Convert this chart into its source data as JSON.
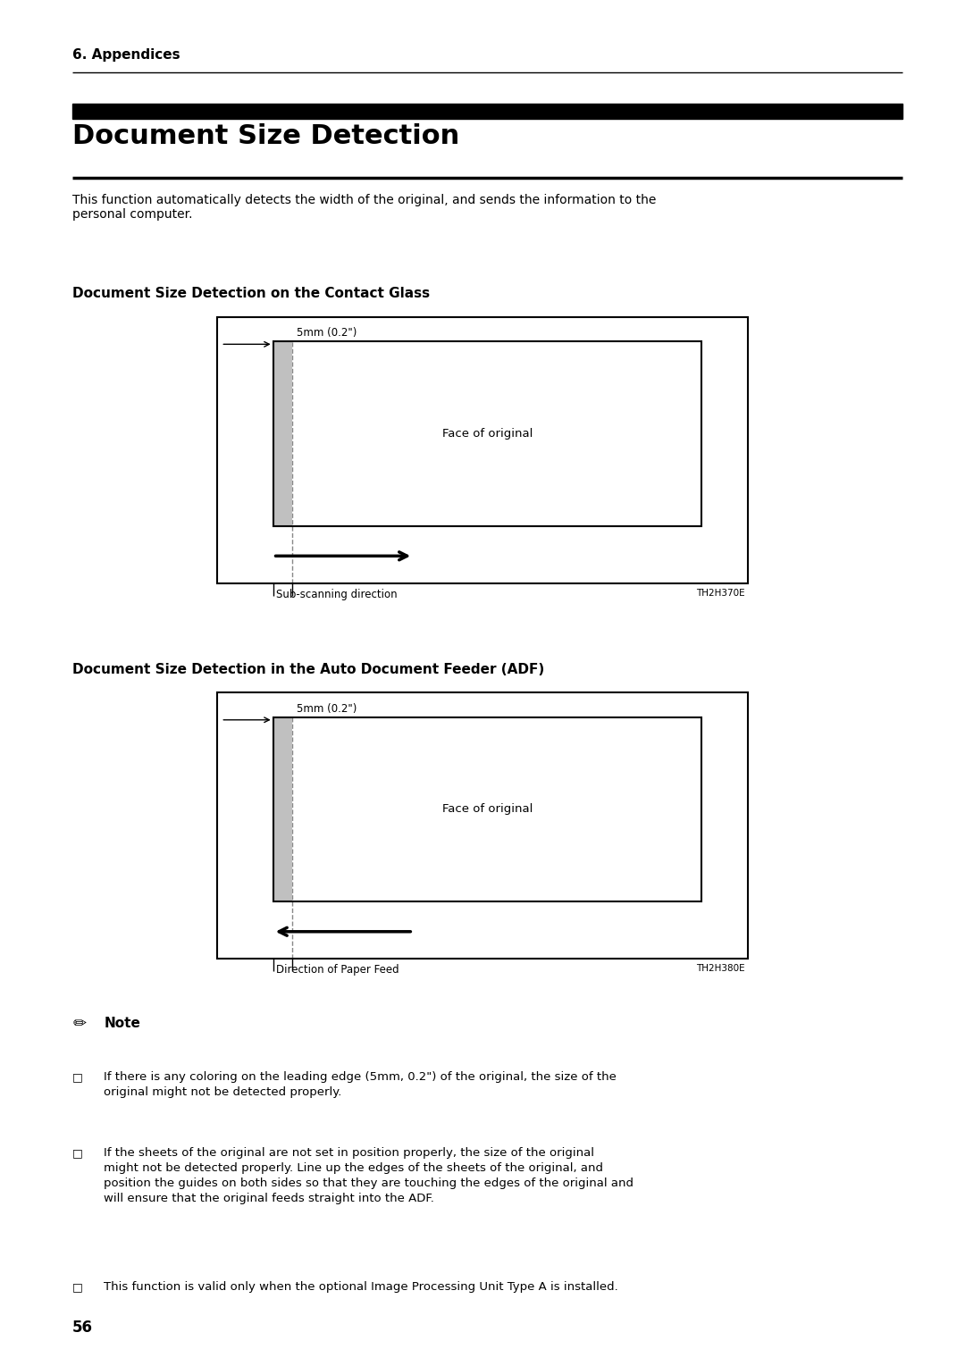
{
  "page_number": "56",
  "section_header": "6. Appendices",
  "main_title": "Document Size Detection",
  "intro_text": "This function automatically detects the width of the original, and sends the information to the\npersonal computer.",
  "diagram1_header": "Document Size Detection on the Contact Glass",
  "diagram1_label_mm": "5mm (0.2\")",
  "diagram1_label_face": "Face of original",
  "diagram1_label_dir": "Sub-scanning direction",
  "diagram1_code": "TH2H370E",
  "diagram2_header": "Document Size Detection in the Auto Document Feeder (ADF)",
  "diagram2_label_mm": "5mm (0.2\")",
  "diagram2_label_face": "Face of original",
  "diagram2_label_dir": "Direction of Paper Feed",
  "diagram2_code": "TH2H380E",
  "note_header": "Note",
  "note_bullets": [
    "If there is any coloring on the leading edge (5mm, 0.2\") of the original, the size of the original might not be detected properly.",
    "If the sheets of the original are not set in position properly, the size of the original might not be detected properly.  Line up the edges of the sheets of the original, and position the guides on both sides so that they are touching the edges of the original and will ensure that the original feeds straight into the ADF.",
    "This function is valid only when the optional Image Processing Unit Type A is installed."
  ],
  "bg_color": "#ffffff",
  "text_color": "#000000"
}
